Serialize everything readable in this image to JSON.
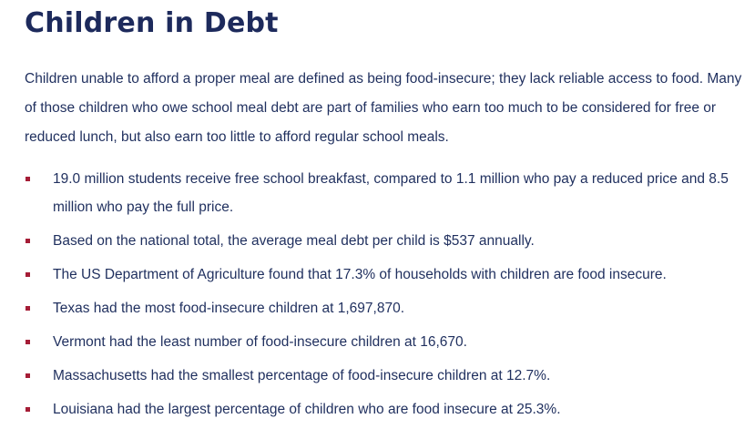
{
  "title": "Children in Debt",
  "intro": "Children unable to afford a proper meal are defined as being food-insecure; they lack reliable access to food. Many of those children who owe school meal debt are part of families who earn too much to be considered for free or reduced lunch, but also earn too little to afford regular school meals.",
  "bullets": [
    "19.0 million students receive free school breakfast, compared to 1.1 million who pay a reduced price and 8.5 million who pay the full price.",
    "Based on the national total, the average meal debt per child is $537 annually.",
    "The US Department of Agriculture found that 17.3% of households with children are food insecure.",
    "Texas had the most food-insecure children at 1,697,870.",
    "Vermont had the least number of food-insecure children at 16,670.",
    "Massachusetts had the smallest percentage of food-insecure children at 12.7%.",
    "Louisiana had the largest percentage of children who are food insecure at 25.3%."
  ],
  "colors": {
    "heading": "#1d2a5c",
    "text": "#1f2f5e",
    "bullet_marker": "#a51d36"
  }
}
